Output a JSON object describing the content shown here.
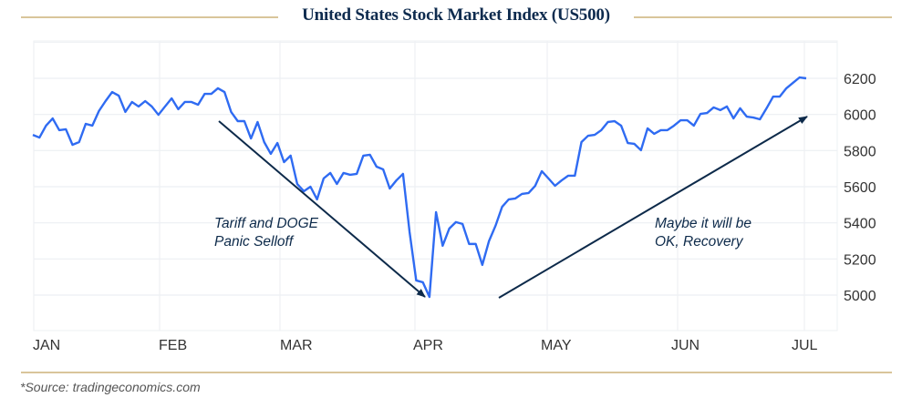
{
  "chart_data": {
    "type": "line",
    "title": "United States Stock Market Index (US500)",
    "source": "*Source: tradingeconomics.com",
    "x_tick_labels": [
      "JAN",
      "FEB",
      "MAR",
      "APR",
      "MAY",
      "JUN",
      "JUL"
    ],
    "y_tick_labels": [
      "5000",
      "5200",
      "5400",
      "5600",
      "5800",
      "6000",
      "6200"
    ],
    "y_ticks": [
      5000,
      5200,
      5400,
      5600,
      5800,
      6000,
      6200
    ],
    "ylim": [
      4840,
      6400
    ],
    "grid": true,
    "line_color": "#2f6bf2",
    "annotation_color": "#0d2a4a",
    "series": [
      {
        "values": [
          5887,
          5872,
          5938,
          5978,
          5913,
          5918,
          5832,
          5847,
          5948,
          5938,
          6019,
          6074,
          6124,
          6104,
          6014,
          6069,
          6044,
          6074,
          6044,
          5998,
          6044,
          6089,
          6029,
          6069,
          6069,
          6054,
          6114,
          6114,
          6145,
          6124,
          6014,
          5963,
          5963,
          5867,
          5958,
          5847,
          5782,
          5842,
          5736,
          5772,
          5615,
          5575,
          5600,
          5530,
          5646,
          5676,
          5615,
          5676,
          5666,
          5671,
          5772,
          5777,
          5711,
          5696,
          5590,
          5635,
          5671,
          5348,
          5081,
          5071,
          4990,
          5459,
          5273,
          5368,
          5404,
          5394,
          5283,
          5283,
          5167,
          5298,
          5384,
          5489,
          5530,
          5535,
          5560,
          5565,
          5605,
          5686,
          5646,
          5605,
          5635,
          5661,
          5661,
          5847,
          5882,
          5887,
          5913,
          5958,
          5963,
          5938,
          5842,
          5837,
          5802,
          5923,
          5893,
          5913,
          5913,
          5938,
          5968,
          5968,
          5938,
          6003,
          6008,
          6039,
          6024,
          6044,
          5978,
          6034,
          5988,
          5983,
          5973,
          6034,
          6099,
          6099,
          6145,
          6175,
          6205,
          6200
        ]
      }
    ],
    "annotations": [
      {
        "lines": [
          "Tariff and DOGE",
          "Panic Selloff"
        ],
        "trend": "down"
      },
      {
        "lines": [
          "Maybe it will be",
          "OK, Recovery"
        ],
        "trend": "up"
      }
    ]
  }
}
